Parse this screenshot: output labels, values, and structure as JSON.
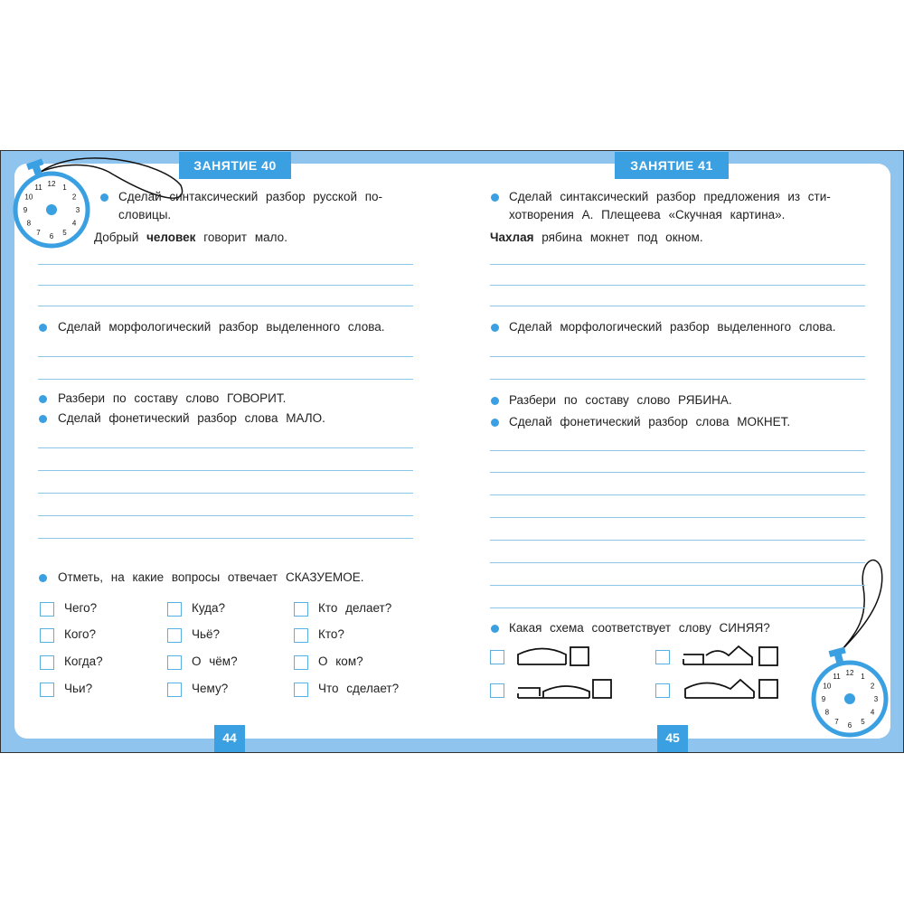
{
  "left_page": {
    "lesson_title": "ЗАНЯТИЕ 40",
    "page_number": "44",
    "task1_line1": "Сделай синтаксический разбор русской по-",
    "task1_line2": "словицы.",
    "sentence_before": "Добрый",
    "sentence_bold": "человек",
    "sentence_after": "говорит мало.",
    "task2": "Сделай морфологический разбор выделенного слова.",
    "task3": "Разбери по составу слово ГОВОРИТ.",
    "task4": "Сделай фонетический разбор слова МАЛО.",
    "task5": "Отметь, на какие вопросы отвечает СКАЗУЕМОЕ.",
    "options": [
      [
        "Чего?",
        "Куда?",
        "Кто делает?"
      ],
      [
        "Кого?",
        "Чьё?",
        "Кто?"
      ],
      [
        "Когда?",
        "О чём?",
        "О ком?"
      ],
      [
        "Чьи?",
        "Чему?",
        "Что сделает?"
      ]
    ]
  },
  "right_page": {
    "lesson_title": "ЗАНЯТИЕ 41",
    "page_number": "45",
    "task1_line1": "Сделай синтаксический разбор предложения из сти-",
    "task1_line2": "хотворения А. Плещеева «Скучная картина».",
    "sentence_bold": "Чахлая",
    "sentence_after": "рябина мокнет под окном.",
    "task2": "Сделай морфологический разбор выделенного слова.",
    "task3": "Разбери по составу слово РЯБИНА.",
    "task4": "Сделай фонетический разбор слова МОКНЕТ.",
    "task5": "Какая схема соответствует слову СИНЯЯ?"
  },
  "colors": {
    "accent": "#3aa0e2",
    "frame": "#8ec4ee",
    "rule": "#8cc7ea"
  },
  "icons": [
    "stopwatch-icon",
    "bullet-dot-icon",
    "checkbox-icon",
    "word-scheme-icon"
  ]
}
